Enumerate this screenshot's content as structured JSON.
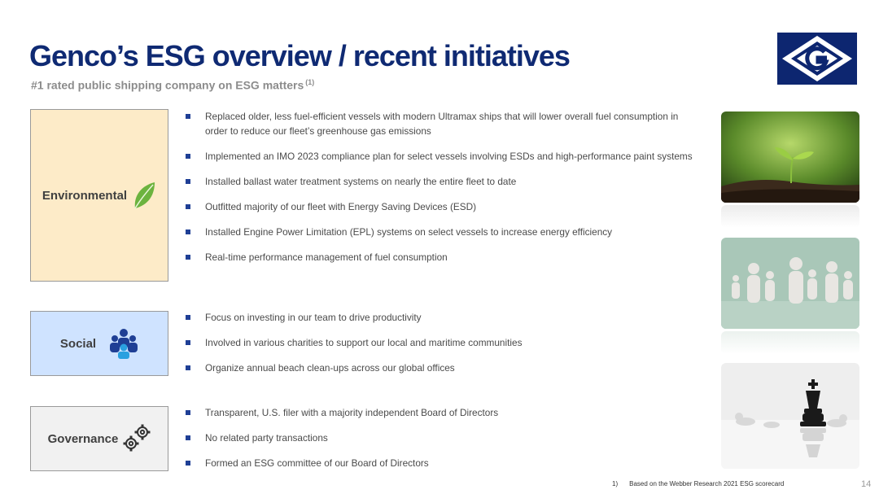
{
  "header": {
    "title": "Genco’s ESG overview / recent initiatives",
    "subtitle": "#1 rated public shipping company on ESG matters",
    "subtitle_ref": "(1)"
  },
  "logo": {
    "icon": "genco-g-diamond-logo",
    "colors": {
      "bg": "#0d2670",
      "fg": "#ffffff"
    }
  },
  "categories": {
    "environmental": {
      "label": "Environmental",
      "icon": "leaf-icon",
      "bullets": [
        "Replaced older, less fuel-efficient vessels with modern Ultramax ships that will lower overall fuel consumption in order to reduce our fleet’s greenhouse gas emissions",
        "Implemented an IMO 2023 compliance plan for select vessels involving ESDs and high-performance paint systems",
        "Installed ballast water treatment systems on nearly the entire fleet to date",
        "Outfitted majority of our fleet with Energy Saving Devices (ESD)",
        "Installed Engine Power Limitation (EPL) systems on select vessels to increase energy efficiency",
        "Real-time performance management of fuel consumption"
      ]
    },
    "social": {
      "label": "Social",
      "icon": "people-group-icon",
      "bullets": [
        "Focus on investing in our team to drive productivity",
        "Involved in various charities to support our local and maritime communities",
        "Organize annual beach clean-ups across our global offices"
      ]
    },
    "governance": {
      "label": "Governance",
      "icon": "gears-icon",
      "bullets": [
        "Transparent, U.S. filer with a majority independent Board of Directors",
        "No related party transactions",
        "Formed an ESG committee of our Board of Directors"
      ]
    }
  },
  "photos": [
    "seedling-photo",
    "paper-people-photo",
    "chess-king-photo"
  ],
  "footnote": {
    "number": "1)",
    "text": "Based on the Webber Research 2021 ESG scorecard"
  },
  "page_number": "14",
  "colors": {
    "title": "#0f2a73",
    "bullet": "#1f3f95",
    "env_bg": "#fdebc8",
    "social_bg": "#cfe3ff",
    "gov_bg": "#f1f1f1"
  }
}
